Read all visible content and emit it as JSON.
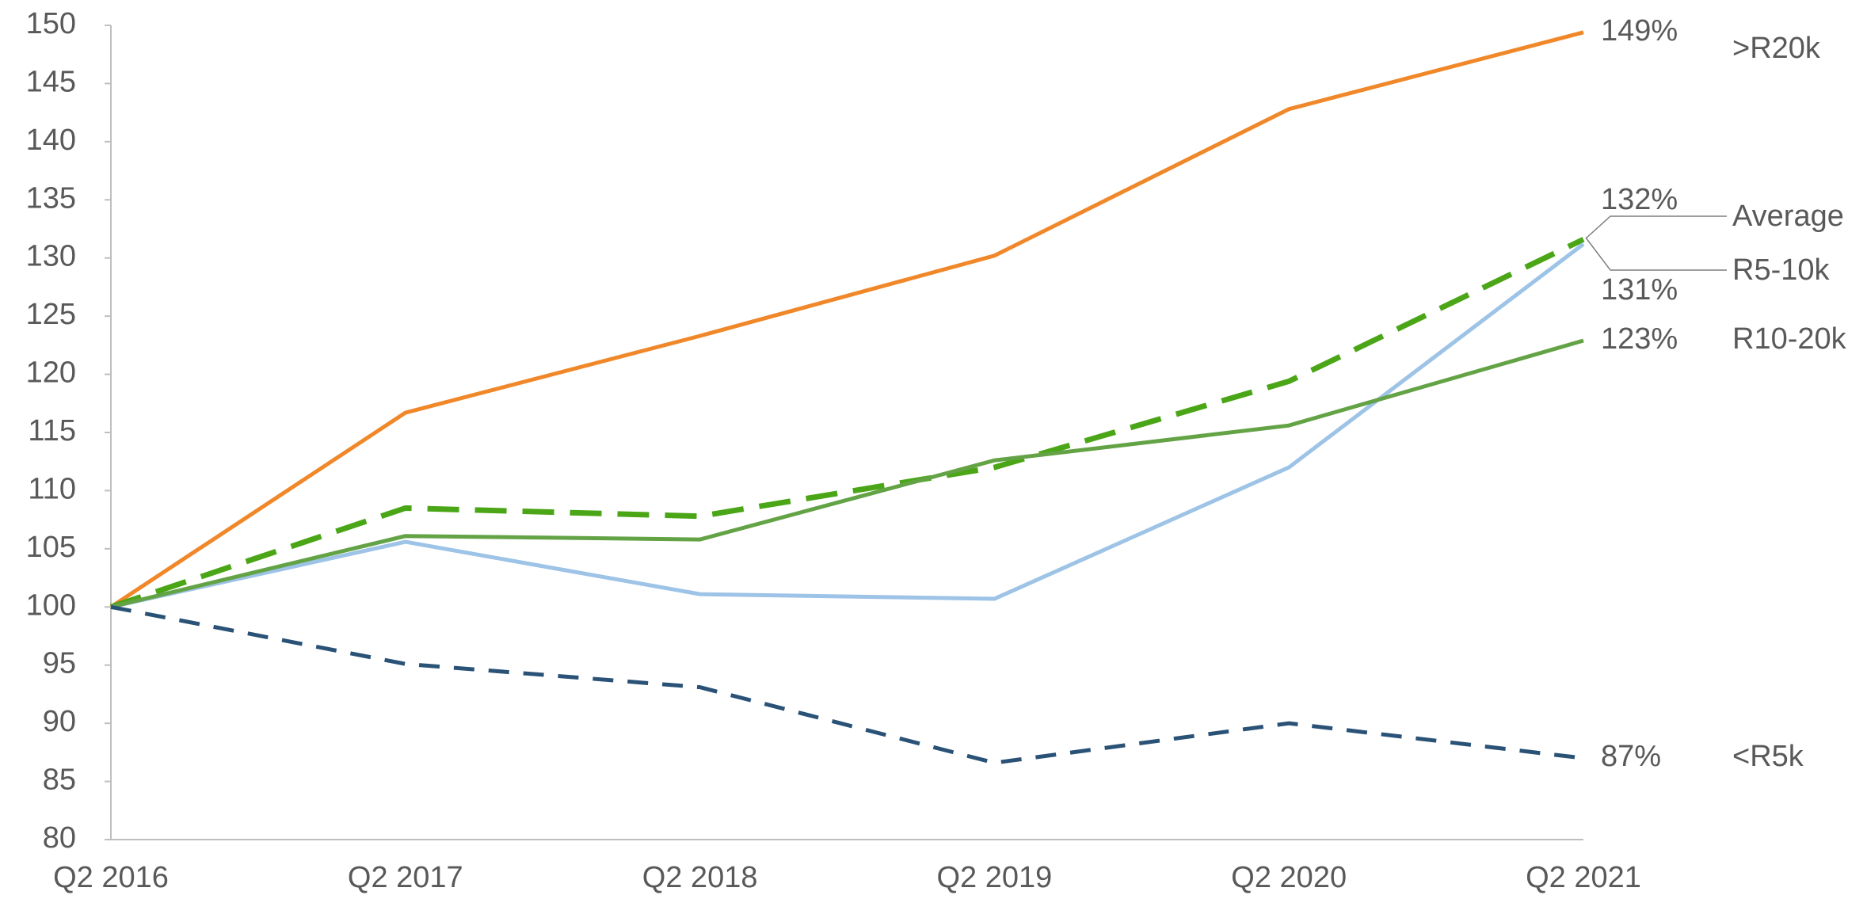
{
  "chart_data": {
    "type": "line",
    "categories": [
      "Q2 2016",
      "Q2 2017",
      "Q2 2018",
      "Q2 2019",
      "Q2 2020",
      "Q2 2021"
    ],
    "ylim": [
      80,
      150
    ],
    "yticks": [
      80,
      85,
      90,
      95,
      100,
      105,
      110,
      115,
      120,
      125,
      130,
      135,
      140,
      145,
      150
    ],
    "series": [
      {
        "name": ">R20k",
        "color": "#f0882a",
        "dashed": false,
        "values": [
          100,
          116.7,
          123.3,
          130.2,
          142.8,
          149.4
        ],
        "value_labels": [
          null,
          null,
          null,
          null,
          null,
          "149%"
        ]
      },
      {
        "name": "Average",
        "color": "#4aa616",
        "dashed": true,
        "values": [
          100,
          108.5,
          107.8,
          112,
          119.4,
          131.6
        ],
        "value_labels": [
          null,
          null,
          null,
          null,
          null,
          "132%"
        ]
      },
      {
        "name": "R5-10k",
        "color": "#9dc3e6",
        "dashed": false,
        "values": [
          100,
          105.6,
          101.1,
          100.7,
          112,
          131.2
        ],
        "value_labels": [
          null,
          null,
          null,
          null,
          null,
          "131%"
        ]
      },
      {
        "name": "R10-20k",
        "color": "#63a346",
        "dashed": false,
        "values": [
          100,
          106.1,
          105.8,
          112.6,
          115.6,
          122.9
        ],
        "value_labels": [
          null,
          null,
          null,
          null,
          null,
          "123%"
        ]
      },
      {
        "name": "<R5k",
        "color": "#2a5277",
        "dashed": true,
        "values": [
          100,
          95.1,
          93.1,
          86.6,
          90,
          87
        ],
        "value_labels": [
          null,
          null,
          null,
          null,
          null,
          "87%"
        ]
      }
    ]
  }
}
